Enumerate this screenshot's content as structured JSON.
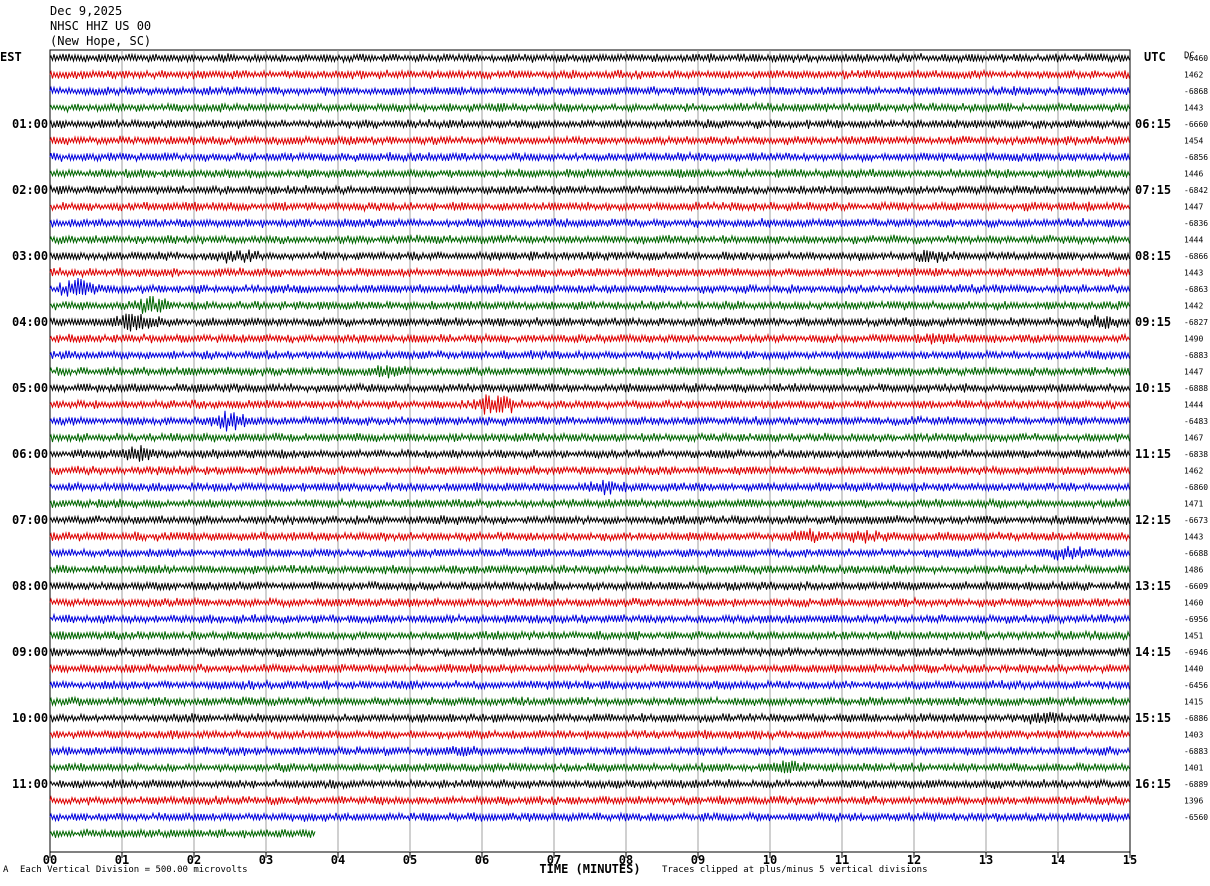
{
  "header": {
    "date": "Dec 9,2025",
    "station": "NHSC HHZ US 00",
    "location": "(New Hope, SC)",
    "left_tz": "EST",
    "right_tz": "UTC",
    "dc_label": "DC"
  },
  "footer": {
    "scale": "Each Vertical Division =  500.00 microvolts",
    "clip": "Traces clipped at plus/minus 5 vertical divisions",
    "mark": "A"
  },
  "colors": {
    "trace": [
      "#000000",
      "#dd0000",
      "#0000dd",
      "#006600"
    ],
    "grid": "#a0a0a0"
  },
  "chart_data": {
    "type": "line",
    "title": "",
    "xlabel": "TIME (MINUTES)",
    "x_ticks": [
      "00",
      "01",
      "02",
      "03",
      "04",
      "05",
      "06",
      "07",
      "08",
      "09",
      "10",
      "11",
      "12",
      "13",
      "14",
      "15"
    ],
    "xlim": [
      0,
      15
    ],
    "rows_per_hour": 4,
    "total_rows": 48,
    "last_row_end_minute": 3.7,
    "left_hour_labels": [
      "01:00",
      "02:00",
      "03:00",
      "04:00",
      "05:00",
      "06:00",
      "07:00",
      "08:00",
      "09:00",
      "10:00",
      "11:00"
    ],
    "right_hour_labels": [
      "06:15",
      "07:15",
      "08:15",
      "09:15",
      "10:15",
      "11:15",
      "12:15",
      "13:15",
      "14:15",
      "15:15",
      "16:15"
    ],
    "dc_offsets": [
      "-6460",
      "1462",
      "-6868",
      "1443",
      "-6660",
      "1454",
      "-6856",
      "1446",
      "-6842",
      "1447",
      "-6836",
      "1444",
      "-6866",
      "1443",
      "-6863",
      "1442",
      "-6827",
      "1490",
      "-6883",
      "1447",
      "-6888",
      "1444",
      "-6483",
      "1467",
      "-6838",
      "1462",
      "-6860",
      "1471",
      "-6673",
      "1443",
      "-6688",
      "1486",
      "-6609",
      "1460",
      "-6956",
      "1451",
      "-6946",
      "1440",
      "-6456",
      "1415",
      "-6886",
      "1403",
      "-6883",
      "1401",
      "-6889",
      "1396",
      "-6560"
    ],
    "events": [
      {
        "row": 14,
        "minute": 0.4,
        "strength": 2.2
      },
      {
        "row": 16,
        "minute": 1.2,
        "strength": 2.5
      },
      {
        "row": 15,
        "minute": 1.4,
        "strength": 1.8
      },
      {
        "row": 21,
        "minute": 6.2,
        "strength": 2.6
      },
      {
        "row": 22,
        "minute": 2.5,
        "strength": 2.3
      },
      {
        "row": 24,
        "minute": 1.2,
        "strength": 1.9
      },
      {
        "row": 12,
        "minute": 2.6,
        "strength": 1.6
      },
      {
        "row": 12,
        "minute": 12.3,
        "strength": 1.6
      },
      {
        "row": 16,
        "minute": 14.6,
        "strength": 1.8
      },
      {
        "row": 26,
        "minute": 7.7,
        "strength": 1.6
      },
      {
        "row": 29,
        "minute": 10.5,
        "strength": 1.8
      },
      {
        "row": 29,
        "minute": 11.3,
        "strength": 1.6
      },
      {
        "row": 30,
        "minute": 14.1,
        "strength": 1.6
      },
      {
        "row": 42,
        "minute": 5.7,
        "strength": 1.6
      },
      {
        "row": 43,
        "minute": 10.2,
        "strength": 1.8
      },
      {
        "row": 40,
        "minute": 13.8,
        "strength": 1.5
      },
      {
        "row": 19,
        "minute": 4.7,
        "strength": 1.5
      },
      {
        "row": 17,
        "minute": 12.3,
        "strength": 1.5
      }
    ]
  }
}
